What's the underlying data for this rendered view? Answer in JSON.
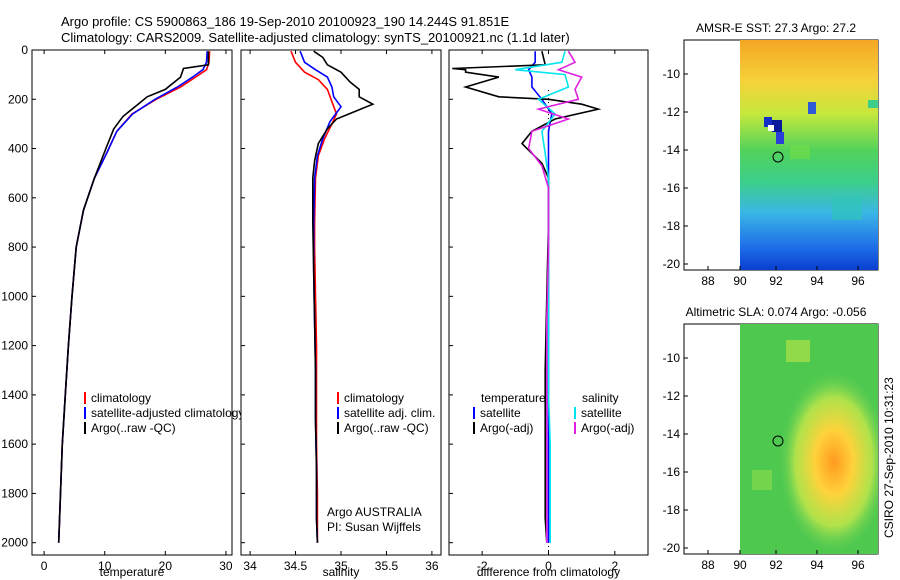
{
  "header": {
    "line1": "Argo profile: CS 5900863_186 19-Sep-2010 20100923_190 14.244S 91.851E",
    "line2": "Climatology: CARS2009. Satellite-adjusted climatology: synTS_20100921.nc (1.1d later)"
  },
  "colors": {
    "climatology": "#ff0000",
    "satellite": "#0000ff",
    "argo": "#000000",
    "sal_sat": "#00e5ee",
    "sal_argo": "#e020e0"
  },
  "chart_data": [
    {
      "type": "line",
      "id": "temperature",
      "xlabel": "temperature",
      "xlim": [
        -2,
        31
      ],
      "ylim": [
        0,
        2050
      ],
      "xticks": [
        0,
        10,
        20,
        30
      ],
      "yticks": [
        0,
        200,
        400,
        600,
        800,
        1000,
        1200,
        1400,
        1600,
        1800,
        2000
      ],
      "legend": [
        "climatology",
        "satellite-adjusted climatology",
        "Argo(..raw -QC)"
      ],
      "series": [
        {
          "name": "climatology",
          "color": "#ff0000",
          "points": [
            [
              27.3,
              5
            ],
            [
              27.2,
              50
            ],
            [
              26.8,
              80
            ],
            [
              25,
              110
            ],
            [
              22.5,
              150
            ],
            [
              18.5,
              200
            ],
            [
              14.5,
              260
            ],
            [
              12,
              330
            ],
            [
              10.3,
              420
            ],
            [
              8.3,
              520
            ],
            [
              6.5,
              650
            ],
            [
              5.3,
              800
            ],
            [
              4.6,
              1000
            ],
            [
              4.0,
              1200
            ],
            [
              3.5,
              1400
            ],
            [
              3.0,
              1600
            ],
            [
              2.7,
              1800
            ],
            [
              2.4,
              2000
            ]
          ]
        },
        {
          "name": "satellite",
          "color": "#0000ff",
          "points": [
            [
              26.9,
              5
            ],
            [
              26.8,
              50
            ],
            [
              26.2,
              80
            ],
            [
              24.5,
              110
            ],
            [
              22,
              150
            ],
            [
              18.3,
              200
            ],
            [
              14.6,
              260
            ],
            [
              12,
              330
            ],
            [
              10.3,
              420
            ],
            [
              8.3,
              520
            ],
            [
              6.5,
              650
            ],
            [
              5.3,
              800
            ],
            [
              4.6,
              1000
            ],
            [
              4.0,
              1200
            ],
            [
              3.5,
              1400
            ],
            [
              3.0,
              1600
            ],
            [
              2.7,
              1800
            ],
            [
              2.4,
              2000
            ]
          ]
        },
        {
          "name": "Argo",
          "color": "#000000",
          "points": [
            [
              27.1,
              5
            ],
            [
              27.1,
              60
            ],
            [
              23,
              75
            ],
            [
              22.5,
              110
            ],
            [
              20,
              160
            ],
            [
              17,
              190
            ],
            [
              15.5,
              220
            ],
            [
              13,
              270
            ],
            [
              11.5,
              320
            ],
            [
              10.2,
              400
            ],
            [
              8.3,
              520
            ],
            [
              6.5,
              650
            ],
            [
              5.3,
              800
            ],
            [
              4.6,
              1000
            ],
            [
              4.0,
              1200
            ],
            [
              3.5,
              1400
            ],
            [
              3.0,
              1600
            ],
            [
              2.7,
              1800
            ],
            [
              2.4,
              2000
            ]
          ]
        }
      ]
    },
    {
      "type": "line",
      "id": "salinity",
      "xlabel": "salinity",
      "xlim": [
        33.9,
        36.1
      ],
      "ylim": [
        0,
        2050
      ],
      "xticks": [
        34,
        34.5,
        35,
        35.5,
        36
      ],
      "xticklabels": [
        "34",
        "34.5",
        "35",
        "35.5",
        "36"
      ],
      "legend": [
        "climatology",
        "satellite adj. clim.",
        "Argo(..raw -QC)"
      ],
      "annotations": [
        "Argo AUSTRALIA",
        "PI: Susan Wijffels"
      ],
      "series": [
        {
          "name": "climatology",
          "color": "#ff0000",
          "points": [
            [
              34.45,
              5
            ],
            [
              34.5,
              50
            ],
            [
              34.6,
              90
            ],
            [
              34.75,
              120
            ],
            [
              34.85,
              160
            ],
            [
              34.9,
              210
            ],
            [
              34.95,
              260
            ],
            [
              34.9,
              300
            ],
            [
              34.82,
              360
            ],
            [
              34.75,
              430
            ],
            [
              34.72,
              520
            ],
            [
              34.71,
              700
            ],
            [
              34.71,
              800
            ],
            [
              34.72,
              1000
            ],
            [
              34.73,
              1200
            ],
            [
              34.73,
              1400
            ],
            [
              34.73,
              1600
            ],
            [
              34.74,
              1800
            ],
            [
              34.74,
              2000
            ]
          ]
        },
        {
          "name": "satellite",
          "color": "#0000ff",
          "points": [
            [
              34.55,
              5
            ],
            [
              34.6,
              50
            ],
            [
              34.72,
              80
            ],
            [
              34.85,
              110
            ],
            [
              34.9,
              150
            ],
            [
              34.92,
              190
            ],
            [
              35.0,
              230
            ],
            [
              34.88,
              290
            ],
            [
              34.8,
              360
            ],
            [
              34.74,
              430
            ],
            [
              34.71,
              520
            ],
            [
              34.7,
              700
            ],
            [
              34.7,
              900
            ],
            [
              34.71,
              1100
            ],
            [
              34.72,
              1300
            ],
            [
              34.72,
              1500
            ],
            [
              34.73,
              1700
            ],
            [
              34.73,
              1900
            ],
            [
              34.74,
              2000
            ]
          ]
        },
        {
          "name": "Argo",
          "color": "#000000",
          "points": [
            [
              34.7,
              5
            ],
            [
              34.8,
              30
            ],
            [
              34.85,
              60
            ],
            [
              35.0,
              90
            ],
            [
              35.1,
              130
            ],
            [
              35.2,
              160
            ],
            [
              35.2,
              190
            ],
            [
              35.35,
              220
            ],
            [
              35.15,
              250
            ],
            [
              34.95,
              280
            ],
            [
              34.85,
              320
            ],
            [
              34.75,
              380
            ],
            [
              34.71,
              450
            ],
            [
              34.69,
              520
            ],
            [
              34.69,
              700
            ],
            [
              34.7,
              900
            ],
            [
              34.71,
              1100
            ],
            [
              34.72,
              1300
            ],
            [
              34.72,
              1500
            ],
            [
              34.73,
              1700
            ],
            [
              34.73,
              1900
            ],
            [
              34.74,
              2000
            ]
          ]
        }
      ]
    },
    {
      "type": "line",
      "id": "difference",
      "xlabel": "difference from climatology",
      "xlim": [
        -3,
        3
      ],
      "ylim": [
        0,
        2050
      ],
      "xticks": [
        -2,
        0,
        2
      ],
      "legend_titles": [
        "temperature",
        "salinity"
      ],
      "legend": [
        "satellite",
        "Argo(-adj)",
        "satellite",
        "Argo(-adj)"
      ],
      "series": [
        {
          "name": "temperature satellite",
          "color": "#0000ff",
          "points": [
            [
              -0.4,
              5
            ],
            [
              -0.4,
              50
            ],
            [
              -0.6,
              80
            ],
            [
              -0.5,
              110
            ],
            [
              -0.5,
              150
            ],
            [
              -0.2,
              200
            ],
            [
              0.1,
              260
            ],
            [
              0,
              330
            ],
            [
              0,
              420
            ],
            [
              0,
              700
            ],
            [
              0,
              900
            ],
            [
              0,
              1100
            ],
            [
              0,
              1300
            ],
            [
              0,
              1500
            ],
            [
              0,
              1700
            ],
            [
              0,
              2000
            ]
          ]
        },
        {
          "name": "temperature Argo",
          "color": "#000000",
          "points": [
            [
              -0.2,
              5
            ],
            [
              -0.1,
              60
            ],
            [
              -2.9,
              75
            ],
            [
              -2.5,
              80
            ],
            [
              -2.5,
              90
            ],
            [
              -1.5,
              110
            ],
            [
              -2.5,
              150
            ],
            [
              -1.5,
              190
            ],
            [
              0,
              200
            ],
            [
              1.0,
              220
            ],
            [
              1.5,
              240
            ],
            [
              0.2,
              280
            ],
            [
              -0.5,
              330
            ],
            [
              -0.8,
              380
            ],
            [
              -0.2,
              460
            ],
            [
              0,
              520
            ],
            [
              0,
              700
            ],
            [
              -0.05,
              1000
            ],
            [
              -0.1,
              1300
            ],
            [
              -0.1,
              1600
            ],
            [
              -0.1,
              1900
            ],
            [
              -0.05,
              2000
            ]
          ]
        },
        {
          "name": "salinity satellite",
          "color": "#00e5ee",
          "points": [
            [
              0.5,
              5
            ],
            [
              0.4,
              50
            ],
            [
              -1.0,
              80
            ],
            [
              0.5,
              100
            ],
            [
              0.6,
              150
            ],
            [
              -0.3,
              200
            ],
            [
              0.2,
              260
            ],
            [
              -0.2,
              330
            ],
            [
              -0.1,
              420
            ],
            [
              0,
              520
            ],
            [
              0,
              800
            ],
            [
              0,
              1100
            ],
            [
              0,
              1400
            ],
            [
              0.05,
              1600
            ],
            [
              0.05,
              1800
            ],
            [
              0.05,
              2000
            ]
          ]
        },
        {
          "name": "salinity Argo",
          "color": "#e020e0",
          "points": [
            [
              0.6,
              5
            ],
            [
              0.8,
              50
            ],
            [
              0.3,
              80
            ],
            [
              1.0,
              110
            ],
            [
              0.8,
              160
            ],
            [
              0.9,
              200
            ],
            [
              -0.3,
              240
            ],
            [
              0.6,
              280
            ],
            [
              -0.5,
              330
            ],
            [
              -0.6,
              400
            ],
            [
              -0.2,
              470
            ],
            [
              0,
              560
            ],
            [
              0,
              800
            ],
            [
              -0.05,
              1100
            ],
            [
              -0.05,
              1400
            ],
            [
              -0.05,
              1700
            ],
            [
              -0.05,
              2000
            ]
          ]
        }
      ]
    }
  ],
  "maps": [
    {
      "id": "sst",
      "title": "AMSR-E SST: 27.3 Argo: 27.2",
      "xticks": [
        "88",
        "90",
        "92",
        "94",
        "96"
      ],
      "yticks": [
        "-10",
        "-12",
        "-14",
        "-16",
        "-18",
        "-20"
      ]
    },
    {
      "id": "sla",
      "title": "Altimetric SLA: 0.074 Argo: -0.056",
      "xticks": [
        "88",
        "90",
        "92",
        "94",
        "96"
      ],
      "yticks": [
        "-10",
        "-12",
        "-14",
        "-16",
        "-18",
        "-20"
      ]
    }
  ],
  "credit": "CSIRO 27-Sep-2010 10:31:23"
}
